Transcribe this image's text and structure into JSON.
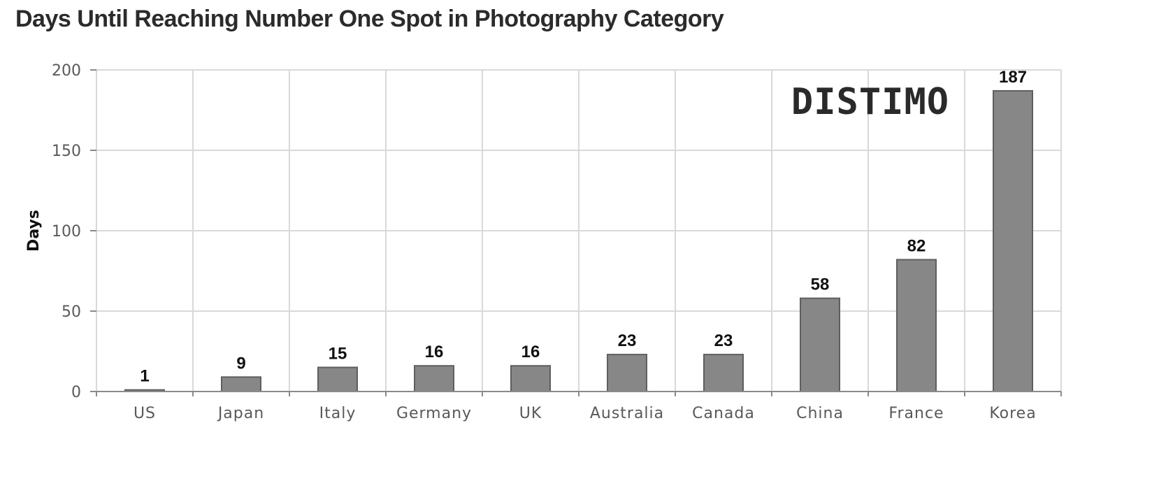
{
  "chart_data": {
    "type": "bar",
    "title": "Days Until Reaching Number One Spot in Photography Category",
    "xlabel": "",
    "ylabel": "Days",
    "ylim": [
      0,
      200
    ],
    "yticks": [
      0,
      50,
      100,
      150,
      200
    ],
    "grid": true,
    "categories": [
      "US",
      "Japan",
      "Italy",
      "Germany",
      "UK",
      "Australia",
      "Canada",
      "China",
      "France",
      "Korea"
    ],
    "values": [
      1,
      9,
      15,
      16,
      16,
      23,
      23,
      58,
      82,
      187
    ],
    "bar_color": "#878787",
    "watermark": "DISTIMO"
  }
}
